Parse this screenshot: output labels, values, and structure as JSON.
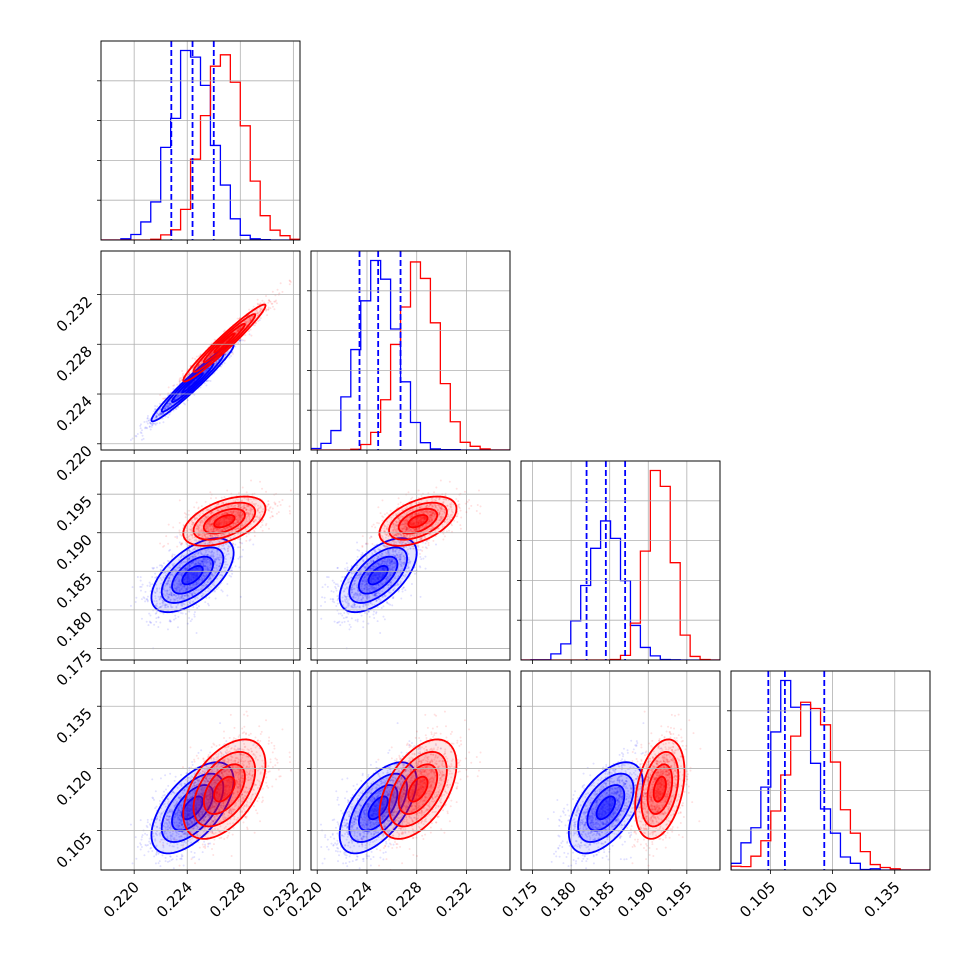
{
  "chart_data": {
    "type": "corner",
    "grid": true,
    "colors": {
      "blue": "#0000ff",
      "red": "#ff0000"
    },
    "parameters": [
      {
        "range": [
          0.2175,
          0.2325
        ],
        "ticks": [
          "0.220",
          "0.224",
          "0.228",
          "0.232"
        ]
      },
      {
        "range": [
          0.2195,
          0.2355
        ],
        "ticks": [
          "0.220",
          "0.224",
          "0.228",
          "0.232"
        ]
      },
      {
        "range": [
          0.1735,
          0.1993
        ],
        "ticks": [
          "0.175",
          "0.180",
          "0.185",
          "0.190",
          "0.195"
        ]
      },
      {
        "range": [
          0.0955,
          0.1435
        ],
        "ticks": [
          "0.105",
          "0.120",
          "0.135"
        ]
      }
    ],
    "series": [
      {
        "color": "#0000ff",
        "mean": [
          0.2244,
          0.2249,
          0.1845,
          0.1105
        ],
        "std": [
          0.00155,
          0.00155,
          0.0024,
          0.0055
        ],
        "quantiles": [
          [
            0.2228,
            0.2244,
            0.226
          ],
          [
            0.2234,
            0.2249,
            0.2267
          ],
          [
            0.182,
            0.1845,
            0.187
          ],
          [
            0.1045,
            0.1085,
            0.118
          ]
        ],
        "correlation": [
          [
            1.0,
            0.97,
            0.6,
            0.6
          ],
          [
            0.97,
            1.0,
            0.6,
            0.6
          ],
          [
            0.6,
            0.6,
            1.0,
            0.55
          ],
          [
            0.6,
            0.6,
            0.55,
            1.0
          ]
        ]
      },
      {
        "color": "#ff0000",
        "mean": [
          0.2268,
          0.2281,
          0.1915,
          0.115
        ],
        "std": [
          0.00155,
          0.00155,
          0.0016,
          0.006
        ],
        "correlation": [
          [
            1.0,
            0.97,
            0.5,
            0.5
          ],
          [
            0.97,
            1.0,
            0.5,
            0.5
          ],
          [
            0.5,
            0.5,
            1.0,
            0.35
          ],
          [
            0.5,
            0.5,
            0.35,
            1.0
          ]
        ]
      }
    ]
  }
}
